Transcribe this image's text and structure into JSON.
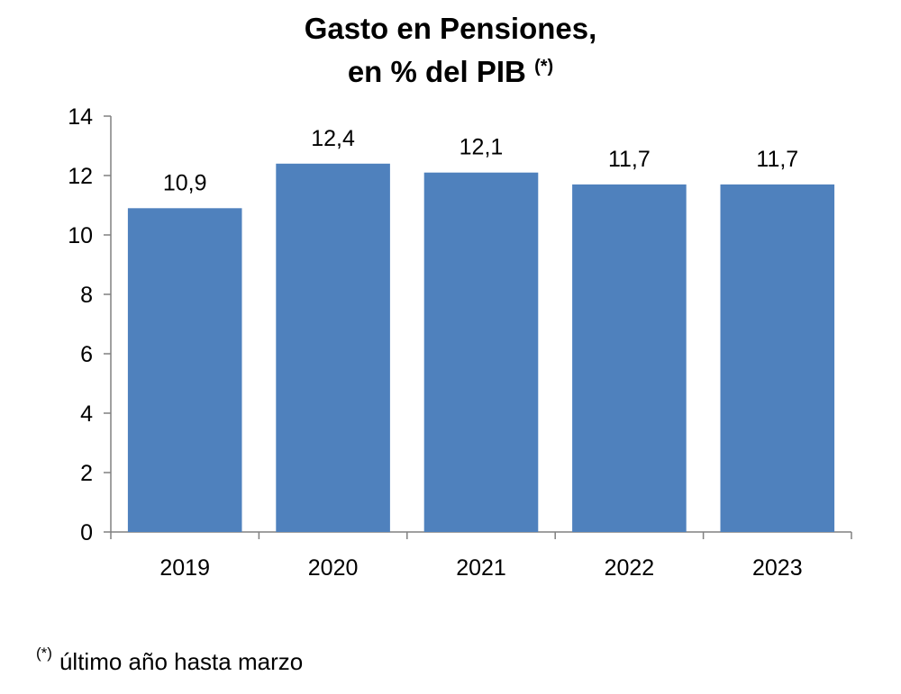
{
  "chart_data": {
    "type": "bar",
    "title_line1": "Gasto en Pensiones,",
    "title_line2": "en % del PIB",
    "title_mark": "(*)",
    "categories": [
      "2019",
      "2020",
      "2021",
      "2022",
      "2023"
    ],
    "values": [
      10.9,
      12.4,
      12.1,
      11.7,
      11.7
    ],
    "value_labels": [
      "10,9",
      "12,4",
      "12,1",
      "11,7",
      "11,7"
    ],
    "ylim": [
      0,
      14
    ],
    "yticks": [
      0,
      2,
      4,
      6,
      8,
      10,
      12,
      14
    ],
    "xlabel": "",
    "ylabel": "",
    "grid": false,
    "bar_color": "#4f81bd"
  },
  "footnote": {
    "mark": "(*)",
    "text": "último año hasta marzo"
  }
}
